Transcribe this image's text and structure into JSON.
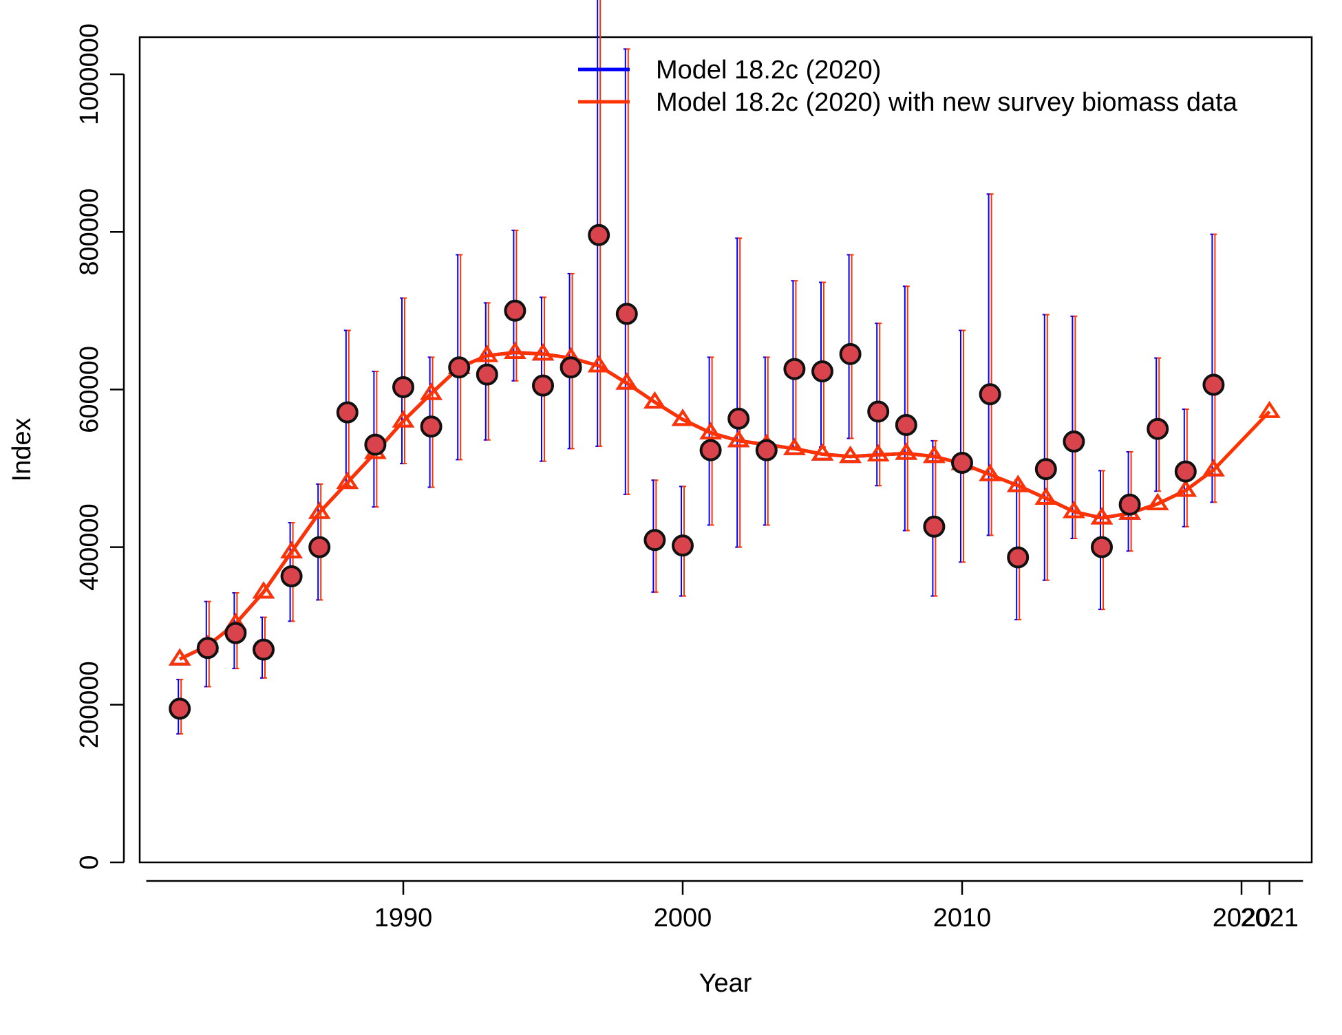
{
  "chart_data": {
    "type": "line",
    "title": "",
    "xlabel": "Year",
    "ylabel": "Index",
    "xlim": [
      1980.5,
      2022.5
    ],
    "ylim": [
      0,
      1055000
    ],
    "x_ticks": [
      1990,
      2000,
      2010,
      2020,
      2021
    ],
    "y_ticks": [
      0,
      200000,
      400000,
      600000,
      800000,
      1000000
    ],
    "y_tick_labels": [
      "0",
      "200000",
      "400000",
      "600000",
      "800000",
      "1000000"
    ],
    "x_tick_labels": [
      "1990",
      "2000",
      "2010",
      "2020",
      "2021"
    ],
    "grid": false,
    "legend_position": "top-right",
    "colors": {
      "model_2020": "#0000ff",
      "model_new": "#ff3300",
      "obs_fill": "#d9434c",
      "obs_edge": "#111111"
    },
    "observations": {
      "x": [
        1982,
        1983,
        1984,
        1985,
        1986,
        1987,
        1988,
        1989,
        1990,
        1991,
        1992,
        1993,
        1994,
        1995,
        1996,
        1997,
        1998,
        1999,
        2000,
        2001,
        2002,
        2003,
        2004,
        2005,
        2006,
        2007,
        2008,
        2009,
        2010,
        2011,
        2012,
        2013,
        2014,
        2015,
        2016,
        2017,
        2018,
        2019
      ],
      "y": [
        195000,
        272000,
        291000,
        270000,
        363000,
        400000,
        571000,
        530000,
        603000,
        553000,
        628000,
        619000,
        700000,
        605000,
        628000,
        796000,
        696000,
        409000,
        402000,
        523000,
        563000,
        523000,
        626000,
        623000,
        645000,
        572000,
        555000,
        426000,
        507000,
        594000,
        387000,
        499000,
        534000,
        400000,
        454000,
        550000,
        496000,
        606000
      ],
      "lower": [
        163000,
        223000,
        246000,
        234000,
        306000,
        333000,
        478000,
        451000,
        506000,
        476000,
        511000,
        536000,
        611000,
        509000,
        525000,
        528000,
        467000,
        343000,
        338000,
        428000,
        400000,
        428000,
        527000,
        527000,
        538000,
        478000,
        421000,
        338000,
        381000,
        415000,
        308000,
        358000,
        411000,
        321000,
        395000,
        471000,
        426000,
        457000
      ],
      "upper": [
        232000,
        331000,
        342000,
        311000,
        431000,
        480000,
        675000,
        623000,
        716000,
        641000,
        771000,
        710000,
        802000,
        717000,
        747000,
        1195000,
        1032000,
        485000,
        477000,
        641000,
        792000,
        641000,
        738000,
        736000,
        771000,
        684000,
        731000,
        535000,
        675000,
        848000,
        485000,
        695000,
        693000,
        497000,
        521000,
        640000,
        575000,
        797000
      ]
    },
    "series": [
      {
        "name": "Model 18.2c (2020)",
        "x": [
          1982,
          1983,
          1984,
          1985,
          1986,
          1987,
          1988,
          1989,
          1990,
          1991,
          1992,
          1993,
          1994,
          1995,
          1996,
          1997,
          1998,
          1999,
          2000,
          2001,
          2002,
          2003,
          2004,
          2005,
          2006,
          2007,
          2008,
          2009,
          2010,
          2011,
          2012,
          2013,
          2014,
          2015,
          2016,
          2017,
          2018,
          2019
        ],
        "y": [
          258000,
          275000,
          303000,
          343000,
          394000,
          444000,
          482000,
          520000,
          560000,
          595000,
          628000,
          643000,
          647000,
          645000,
          640000,
          630000,
          608000,
          584000,
          562000,
          545000,
          535000,
          530000,
          525000,
          518000,
          515000,
          517000,
          519000,
          515000,
          506000,
          492000,
          478000,
          462000,
          445000,
          437000,
          443000,
          455000,
          472000,
          498000
        ],
        "color": "#0000ff"
      },
      {
        "name": "Model 18.2c (2020) with new survey biomass data",
        "x": [
          1982,
          1983,
          1984,
          1985,
          1986,
          1987,
          1988,
          1989,
          1990,
          1991,
          1992,
          1993,
          1994,
          1995,
          1996,
          1997,
          1998,
          1999,
          2000,
          2001,
          2002,
          2003,
          2004,
          2005,
          2006,
          2007,
          2008,
          2009,
          2010,
          2011,
          2012,
          2013,
          2014,
          2015,
          2016,
          2017,
          2018,
          2019,
          2021
        ],
        "y": [
          258000,
          275000,
          303000,
          343000,
          394000,
          444000,
          482000,
          520000,
          560000,
          595000,
          628000,
          643000,
          647000,
          645000,
          640000,
          630000,
          608000,
          584000,
          562000,
          545000,
          535000,
          530000,
          525000,
          518000,
          515000,
          517000,
          519000,
          515000,
          506000,
          492000,
          478000,
          462000,
          445000,
          437000,
          443000,
          455000,
          472000,
          498000,
          572000
        ],
        "color": "#ff3300"
      }
    ]
  }
}
